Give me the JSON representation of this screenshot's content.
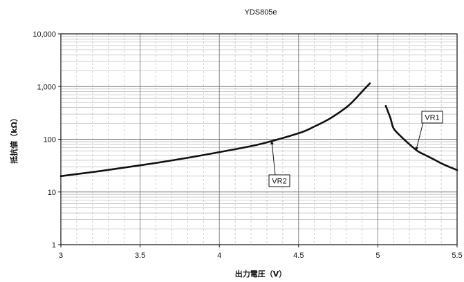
{
  "chart_data": {
    "type": "line",
    "title": "YDS805e",
    "xlabel": "出力電圧（V）",
    "ylabel": "抵抗値（kΩ）",
    "xlim": [
      3,
      5.5
    ],
    "ylim": [
      1,
      10000
    ],
    "yscale": "log",
    "grid": true,
    "x_ticks": [
      "3",
      "3.5",
      "4",
      "4.5",
      "5",
      "5.5"
    ],
    "y_ticks": [
      "1",
      "10",
      "100",
      "1,000",
      "10,000"
    ],
    "series": [
      {
        "name": "VR2",
        "color": "#111111",
        "points": [
          [
            3.0,
            20
          ],
          [
            3.25,
            25
          ],
          [
            3.5,
            32
          ],
          [
            3.75,
            42
          ],
          [
            4.0,
            57
          ],
          [
            4.25,
            80
          ],
          [
            4.5,
            130
          ],
          [
            4.6,
            175
          ],
          [
            4.7,
            250
          ],
          [
            4.8,
            400
          ],
          [
            4.85,
            550
          ],
          [
            4.9,
            800
          ],
          [
            4.95,
            1150
          ]
        ]
      },
      {
        "name": "VR1",
        "color": "#111111",
        "points": [
          [
            5.05,
            430
          ],
          [
            5.08,
            250
          ],
          [
            5.1,
            160
          ],
          [
            5.15,
            110
          ],
          [
            5.2,
            80
          ],
          [
            5.25,
            60
          ],
          [
            5.3,
            50
          ],
          [
            5.35,
            42
          ],
          [
            5.4,
            35
          ],
          [
            5.45,
            30
          ],
          [
            5.5,
            26
          ]
        ]
      }
    ],
    "annotations": [
      {
        "text": "VR2",
        "points_to": [
          4.33,
          95
        ]
      },
      {
        "text": "VR1",
        "points_to": [
          5.24,
          60
        ]
      }
    ]
  }
}
